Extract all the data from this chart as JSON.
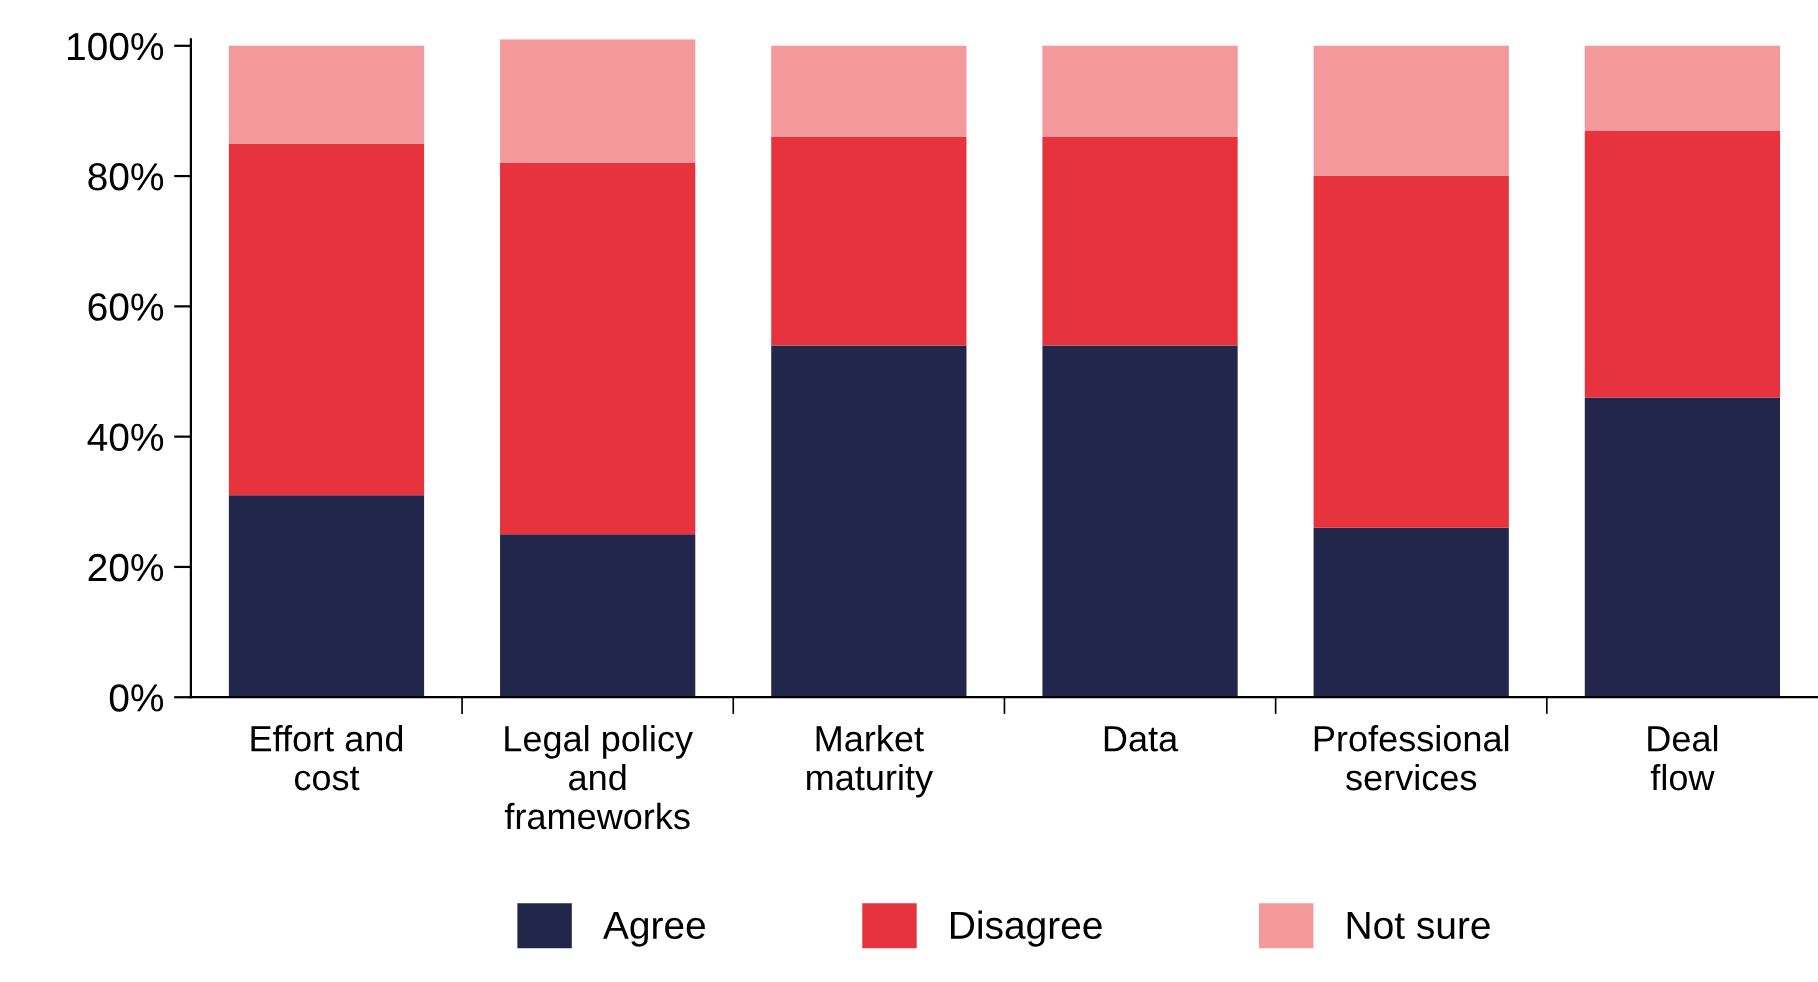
{
  "chart_data": {
    "type": "bar",
    "stacked": true,
    "categories": [
      "Effort and\ncost",
      "Legal policy\nand\nframeworks",
      "Market\nmaturity",
      "Data",
      "Professional\nservices",
      "Deal\nflow"
    ],
    "series": [
      {
        "name": "Agree",
        "color": "#22264a",
        "values": [
          31,
          25,
          54,
          54,
          26,
          46
        ]
      },
      {
        "name": "Disagree",
        "color": "#e6333e",
        "values": [
          54,
          57,
          32,
          32,
          54,
          41
        ]
      },
      {
        "name": "Not sure",
        "color": "#f3999c",
        "values": [
          15,
          19,
          14,
          14,
          20,
          13
        ]
      }
    ],
    "ylim": [
      0,
      101
    ],
    "yticks": [
      {
        "value": 0,
        "label": "0%"
      },
      {
        "value": 20,
        "label": "20%"
      },
      {
        "value": 40,
        "label": "40%"
      },
      {
        "value": 60,
        "label": "60%"
      },
      {
        "value": 80,
        "label": "80%"
      },
      {
        "value": 100,
        "label": "100%"
      }
    ],
    "grid": false,
    "legend": "bottom"
  }
}
